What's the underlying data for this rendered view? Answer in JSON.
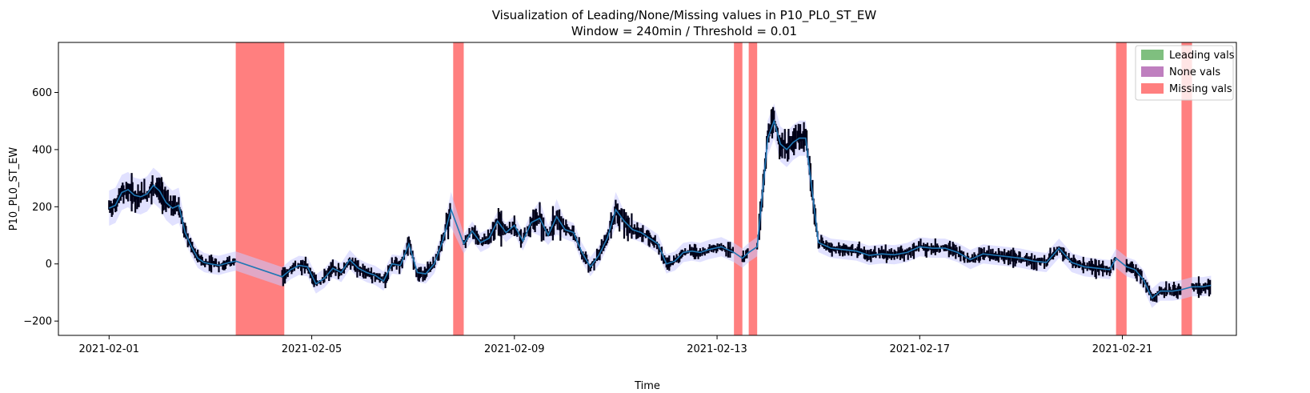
{
  "chart_data": {
    "type": "line",
    "title": [
      "Visualization of Leading/None/Missing values in P10_PL0_ST_EW",
      "Window = 240min / Threshold = 0.01"
    ],
    "xlabel": "Time",
    "ylabel": "P10_PL0_ST_EW",
    "xlim": [
      "2021-01-31T00:00",
      "2021-02-23T06:00"
    ],
    "ylim": [
      -250,
      775
    ],
    "x_ticks": [
      "2021-02-01",
      "2021-02-05",
      "2021-02-09",
      "2021-02-13",
      "2021-02-17",
      "2021-02-21"
    ],
    "y_ticks": [
      -200,
      0,
      200,
      400,
      600
    ],
    "legend_position": "top-right",
    "legend": [
      {
        "label": "Leading vals",
        "color": "#7fbf7f"
      },
      {
        "label": "None vals",
        "color": "#bf7fbf"
      },
      {
        "label": "Missing vals",
        "color": "#ff7f7f"
      }
    ],
    "missing_intervals": [
      [
        "2021-02-03T12:00",
        "2021-02-04T11:00"
      ],
      [
        "2021-02-07T19:00",
        "2021-02-08T00:00"
      ],
      [
        "2021-02-13T08:00",
        "2021-02-13T12:00"
      ],
      [
        "2021-02-13T15:00",
        "2021-02-13T19:00"
      ],
      [
        "2021-02-20T21:00",
        "2021-02-21T02:00"
      ],
      [
        "2021-02-22T04:00",
        "2021-02-22T09:00"
      ]
    ],
    "series": [
      {
        "name": "Rolling mean",
        "color": "#1f77b4",
        "points": [
          [
            "2021-02-01T00:00",
            195
          ],
          [
            "2021-02-01T03:00",
            205
          ],
          [
            "2021-02-01T06:00",
            250
          ],
          [
            "2021-02-01T09:00",
            260
          ],
          [
            "2021-02-01T12:00",
            240
          ],
          [
            "2021-02-01T15:00",
            235
          ],
          [
            "2021-02-01T18:00",
            245
          ],
          [
            "2021-02-01T21:00",
            275
          ],
          [
            "2021-02-02T00:00",
            255
          ],
          [
            "2021-02-02T03:00",
            215
          ],
          [
            "2021-02-02T06:00",
            195
          ],
          [
            "2021-02-02T09:00",
            205
          ],
          [
            "2021-02-02T12:00",
            110
          ],
          [
            "2021-02-02T15:00",
            60
          ],
          [
            "2021-02-02T18:00",
            20
          ],
          [
            "2021-02-02T21:00",
            5
          ],
          [
            "2021-02-03T00:00",
            0
          ],
          [
            "2021-02-03T04:00",
            -5
          ],
          [
            "2021-02-03T09:00",
            5
          ],
          [
            "2021-02-03T12:00",
            10
          ],
          [
            "2021-02-04T10:00",
            -45
          ],
          [
            "2021-02-04T14:00",
            -20
          ],
          [
            "2021-02-04T18:00",
            -5
          ],
          [
            "2021-02-04T22:00",
            -10
          ],
          [
            "2021-02-05T02:00",
            -70
          ],
          [
            "2021-02-05T06:00",
            -50
          ],
          [
            "2021-02-05T10:00",
            -15
          ],
          [
            "2021-02-05T14:00",
            -30
          ],
          [
            "2021-02-05T18:00",
            15
          ],
          [
            "2021-02-05T22:00",
            -15
          ],
          [
            "2021-02-06T02:00",
            -30
          ],
          [
            "2021-02-06T06:00",
            -40
          ],
          [
            "2021-02-06T10:00",
            -60
          ],
          [
            "2021-02-06T14:00",
            0
          ],
          [
            "2021-02-06T18:00",
            -5
          ],
          [
            "2021-02-06T22:00",
            70
          ],
          [
            "2021-02-07T02:00",
            -30
          ],
          [
            "2021-02-07T06:00",
            -35
          ],
          [
            "2021-02-07T10:00",
            0
          ],
          [
            "2021-02-07T14:00",
            80
          ],
          [
            "2021-02-07T18:00",
            190
          ],
          [
            "2021-02-08T00:00",
            70
          ],
          [
            "2021-02-08T04:00",
            115
          ],
          [
            "2021-02-08T08:00",
            75
          ],
          [
            "2021-02-08T12:00",
            90
          ],
          [
            "2021-02-08T16:00",
            150
          ],
          [
            "2021-02-08T20:00",
            110
          ],
          [
            "2021-02-09T00:00",
            135
          ],
          [
            "2021-02-09T04:00",
            80
          ],
          [
            "2021-02-09T08:00",
            145
          ],
          [
            "2021-02-09T12:00",
            160
          ],
          [
            "2021-02-09T16:00",
            100
          ],
          [
            "2021-02-09T20:00",
            165
          ],
          [
            "2021-02-10T00:00",
            120
          ],
          [
            "2021-02-10T04:00",
            110
          ],
          [
            "2021-02-10T08:00",
            40
          ],
          [
            "2021-02-10T12:00",
            -10
          ],
          [
            "2021-02-10T16:00",
            30
          ],
          [
            "2021-02-10T20:00",
            90
          ],
          [
            "2021-02-11T00:00",
            190
          ],
          [
            "2021-02-11T04:00",
            150
          ],
          [
            "2021-02-11T08:00",
            120
          ],
          [
            "2021-02-11T12:00",
            110
          ],
          [
            "2021-02-11T16:00",
            90
          ],
          [
            "2021-02-11T20:00",
            70
          ],
          [
            "2021-02-12T00:00",
            0
          ],
          [
            "2021-02-12T04:00",
            10
          ],
          [
            "2021-02-12T08:00",
            40
          ],
          [
            "2021-02-12T12:00",
            45
          ],
          [
            "2021-02-12T16:00",
            40
          ],
          [
            "2021-02-12T20:00",
            50
          ],
          [
            "2021-02-13T02:00",
            60
          ],
          [
            "2021-02-13T08:00",
            40
          ],
          [
            "2021-02-13T12:00",
            20
          ],
          [
            "2021-02-13T15:00",
            40
          ],
          [
            "2021-02-13T19:00",
            60
          ],
          [
            "2021-02-13T21:00",
            210
          ],
          [
            "2021-02-14T00:00",
            440
          ],
          [
            "2021-02-14T03:00",
            500
          ],
          [
            "2021-02-14T06:00",
            420
          ],
          [
            "2021-02-14T09:00",
            400
          ],
          [
            "2021-02-14T12:00",
            425
          ],
          [
            "2021-02-14T15:00",
            440
          ],
          [
            "2021-02-14T18:00",
            440
          ],
          [
            "2021-02-15T00:00",
            75
          ],
          [
            "2021-02-15T06:00",
            55
          ],
          [
            "2021-02-15T12:00",
            50
          ],
          [
            "2021-02-15T18:00",
            45
          ],
          [
            "2021-02-16T00:00",
            30
          ],
          [
            "2021-02-16T06:00",
            35
          ],
          [
            "2021-02-16T12:00",
            32
          ],
          [
            "2021-02-16T18:00",
            40
          ],
          [
            "2021-02-17T00:00",
            60
          ],
          [
            "2021-02-17T06:00",
            55
          ],
          [
            "2021-02-17T12:00",
            55
          ],
          [
            "2021-02-17T18:00",
            40
          ],
          [
            "2021-02-18T00:00",
            15
          ],
          [
            "2021-02-18T06:00",
            35
          ],
          [
            "2021-02-18T12:00",
            30
          ],
          [
            "2021-02-18T18:00",
            25
          ],
          [
            "2021-02-19T00:00",
            20
          ],
          [
            "2021-02-19T06:00",
            10
          ],
          [
            "2021-02-19T12:00",
            5
          ],
          [
            "2021-02-19T18:00",
            55
          ],
          [
            "2021-02-20T00:00",
            5
          ],
          [
            "2021-02-20T06:00",
            -10
          ],
          [
            "2021-02-20T12:00",
            -15
          ],
          [
            "2021-02-20T18:00",
            -20
          ],
          [
            "2021-02-20T21:00",
            20
          ],
          [
            "2021-02-21T02:00",
            -10
          ],
          [
            "2021-02-21T06:00",
            -20
          ],
          [
            "2021-02-21T10:00",
            -55
          ],
          [
            "2021-02-21T14:00",
            -120
          ],
          [
            "2021-02-21T18:00",
            -95
          ],
          [
            "2021-02-22T00:00",
            -95
          ],
          [
            "2021-02-22T04:00",
            -90
          ],
          [
            "2021-02-22T09:00",
            -80
          ],
          [
            "2021-02-22T14:00",
            -80
          ],
          [
            "2021-02-22T18:00",
            -75
          ]
        ]
      }
    ]
  }
}
